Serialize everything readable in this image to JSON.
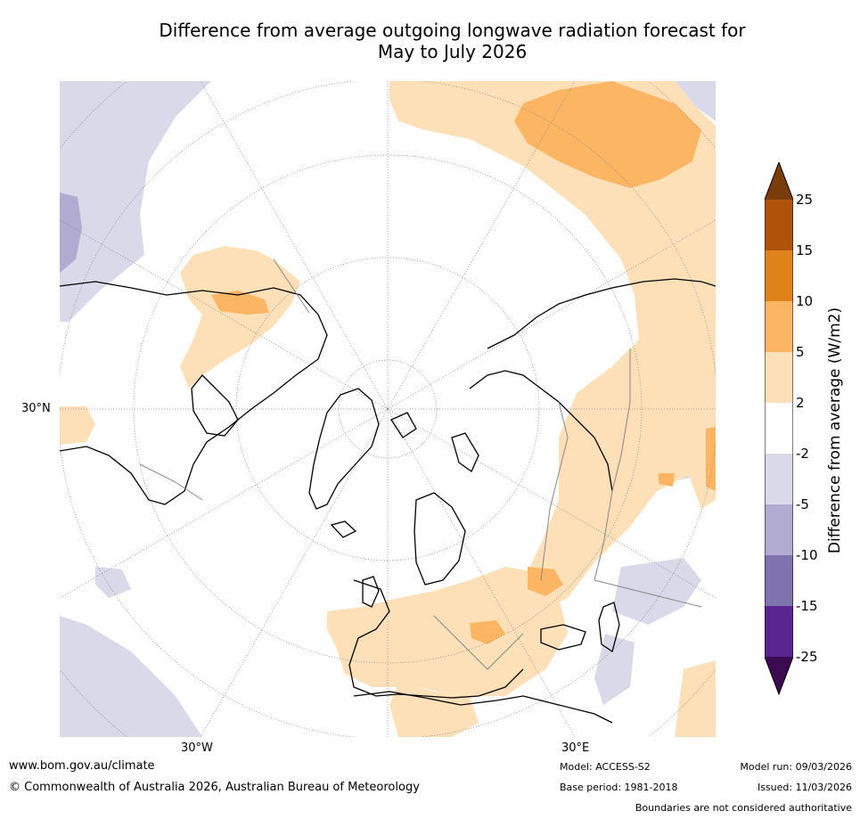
{
  "title": {
    "line1": "Difference from average outgoing longwave radiation forecast for",
    "line2": "May to July 2026"
  },
  "map": {
    "projection": "north polar stereographic",
    "lon_labels": [
      "30°W",
      "30°E"
    ],
    "lat_labels": [
      "30°N"
    ]
  },
  "colorbar": {
    "label": "Difference from average (W/m2)",
    "ticks": [
      "25",
      "15",
      "10",
      "5",
      "2",
      "-2",
      "-5",
      "-10",
      "-15",
      "-25"
    ],
    "colors": {
      "gt25": "#7a3c0a",
      "15_25": "#b0530a",
      "10_15": "#e0821a",
      "5_10": "#fbb563",
      "2_5": "#fde0b8",
      "m2_2": "#ffffff",
      "m5_m2": "#d9d9ea",
      "m10_m5": "#b1aad1",
      "m15_m10": "#7f73af",
      "m25_m15": "#5a2590",
      "lt_m25": "#3b0a50"
    }
  },
  "footer": {
    "website": "www.bom.gov.au/climate",
    "copyright": "© Commonwealth of Australia 2026, Australian Bureau of Meteorology",
    "model": "Model: ACCESS-S2",
    "base_period": "Base period: 1981-2018",
    "model_run": "Model run: 09/03/2026",
    "issued": "Issued: 11/03/2026",
    "disclaimer": "Boundaries are not considered authoritative"
  }
}
